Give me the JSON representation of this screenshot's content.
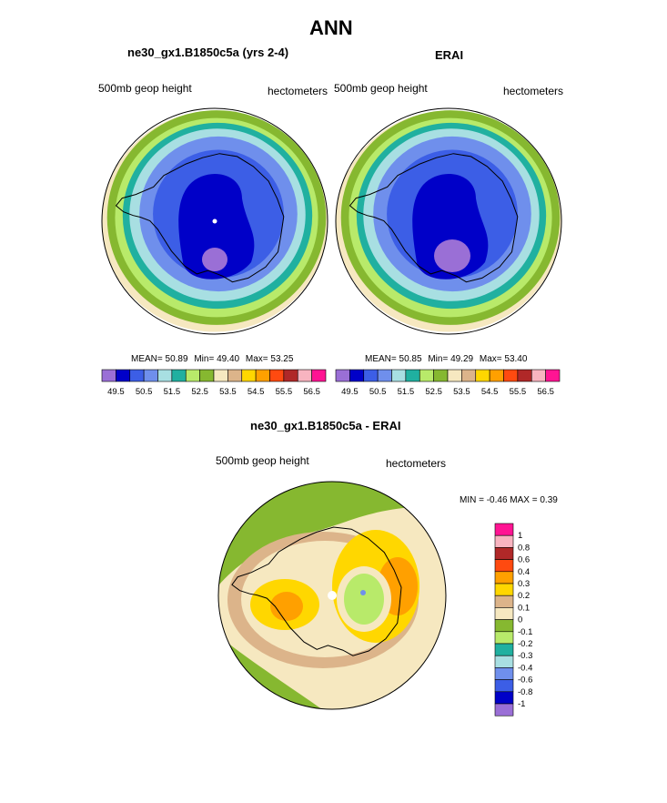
{
  "figure": {
    "title": "ANN"
  },
  "colors": {
    "abs_levels": [
      "#9a6fd6",
      "#0000c8",
      "#3c5ee6",
      "#6f8fec",
      "#a8dfe2",
      "#20b0a0",
      "#b8ea6a",
      "#86b830",
      "#f6e8c0",
      "#dcb48a",
      "#ffd700",
      "#ffa000",
      "#ff4a10",
      "#b02828",
      "#f8b4c0",
      "#ff1493"
    ],
    "diff_levels": [
      "#9a6fd6",
      "#0000c8",
      "#3c5ee6",
      "#6f8fec",
      "#a8dfe2",
      "#20b0a0",
      "#b8ea6a",
      "#86b830",
      "#f6e8c0",
      "#dcb48a",
      "#ffd700",
      "#ffa000",
      "#ff4a10",
      "#b02828",
      "#f8b4c0",
      "#ff1493"
    ]
  },
  "chart_data": [
    {
      "type": "polar-contour-map",
      "title": "ne30_gx1.B1850c5a (yrs 2-4)",
      "variable": "500mb geop height",
      "units": "hectometers",
      "stats": {
        "mean_label": "MEAN=",
        "mean": "50.89",
        "min_label": "Min=",
        "min": "49.40",
        "max_label": "Max=",
        "max": "53.25"
      },
      "colorbar_ticks": [
        "49.5",
        "50.5",
        "51.5",
        "52.5",
        "53.5",
        "54.5",
        "55.5",
        "56.5"
      ]
    },
    {
      "type": "polar-contour-map",
      "title": "ERAI",
      "variable": "500mb geop height",
      "units": "hectometers",
      "stats": {
        "mean_label": "MEAN=",
        "mean": "50.85",
        "min_label": "Min=",
        "min": "49.29",
        "max_label": "Max=",
        "max": "53.40"
      },
      "colorbar_ticks": [
        "49.5",
        "50.5",
        "51.5",
        "52.5",
        "53.5",
        "54.5",
        "55.5",
        "56.5"
      ]
    },
    {
      "type": "polar-contour-map",
      "title": "ne30_gx1.B1850c5a - ERAI",
      "variable": "500mb geop height",
      "units": "hectometers",
      "stats_text": "MIN =  -0.46 MAX =   0.39",
      "colorbar_ticks": [
        "1",
        "0.8",
        "0.6",
        "0.4",
        "0.3",
        "0.2",
        "0.1",
        "0",
        "-0.1",
        "-0.2",
        "-0.3",
        "-0.4",
        "-0.6",
        "-0.8",
        "-1"
      ]
    }
  ]
}
